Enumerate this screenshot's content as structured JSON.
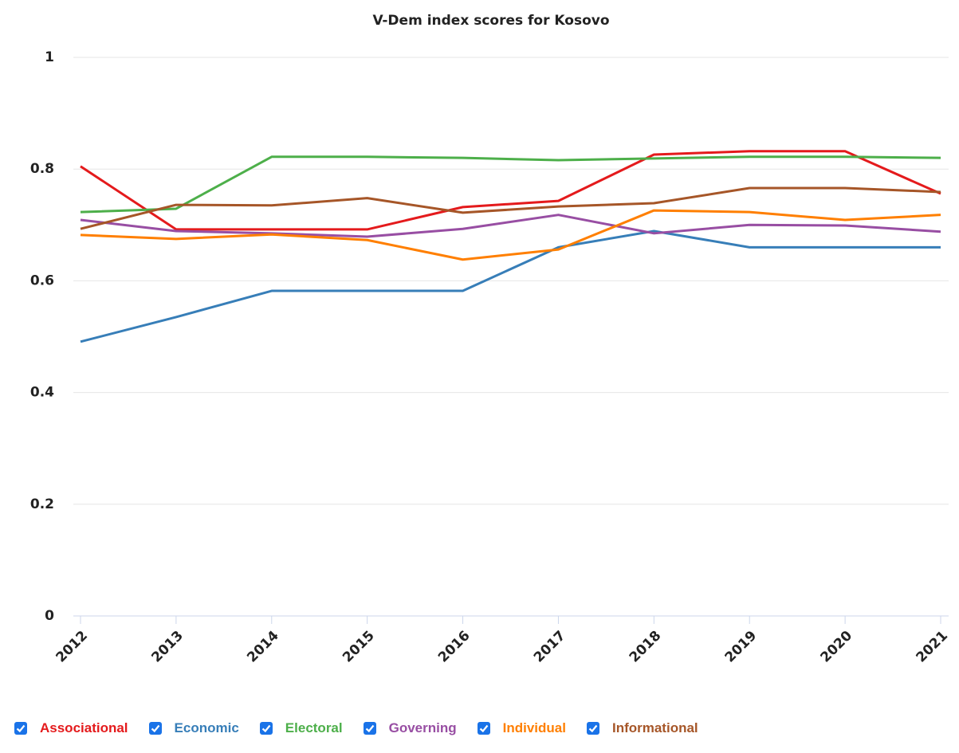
{
  "chart_data": {
    "type": "line",
    "title": "V-Dem index scores for Kosovo",
    "categories": [
      "2012",
      "2013",
      "2014",
      "2015",
      "2016",
      "2017",
      "2018",
      "2019",
      "2020",
      "2021"
    ],
    "ylim": [
      0,
      1
    ],
    "yticks": [
      0,
      0.2,
      0.4,
      0.6,
      0.8,
      1
    ],
    "grid": true,
    "legend": "bottom",
    "series": [
      {
        "name": "Associational",
        "color": "#e41a1c",
        "values": [
          0.805,
          0.692,
          0.692,
          0.692,
          0.732,
          0.743,
          0.826,
          0.832,
          0.832,
          0.756
        ]
      },
      {
        "name": "Economic",
        "color": "#377eb8",
        "values": [
          0.491,
          0.535,
          0.582,
          0.582,
          0.582,
          0.66,
          0.689,
          0.66,
          0.66,
          0.66
        ]
      },
      {
        "name": "Electoral",
        "color": "#4daf4a",
        "values": [
          0.723,
          0.729,
          0.822,
          0.822,
          0.82,
          0.816,
          0.819,
          0.822,
          0.822,
          0.82
        ]
      },
      {
        "name": "Governing",
        "color": "#984ea3",
        "values": [
          0.709,
          0.689,
          0.685,
          0.679,
          0.693,
          0.718,
          0.685,
          0.7,
          0.699,
          0.688
        ]
      },
      {
        "name": "Individual",
        "color": "#ff7f00",
        "values": [
          0.682,
          0.675,
          0.683,
          0.673,
          0.638,
          0.656,
          0.726,
          0.723,
          0.709,
          0.718
        ]
      },
      {
        "name": "Informational",
        "color": "#a65628",
        "values": [
          0.693,
          0.736,
          0.735,
          0.748,
          0.722,
          0.733,
          0.739,
          0.766,
          0.766,
          0.759
        ]
      }
    ]
  }
}
